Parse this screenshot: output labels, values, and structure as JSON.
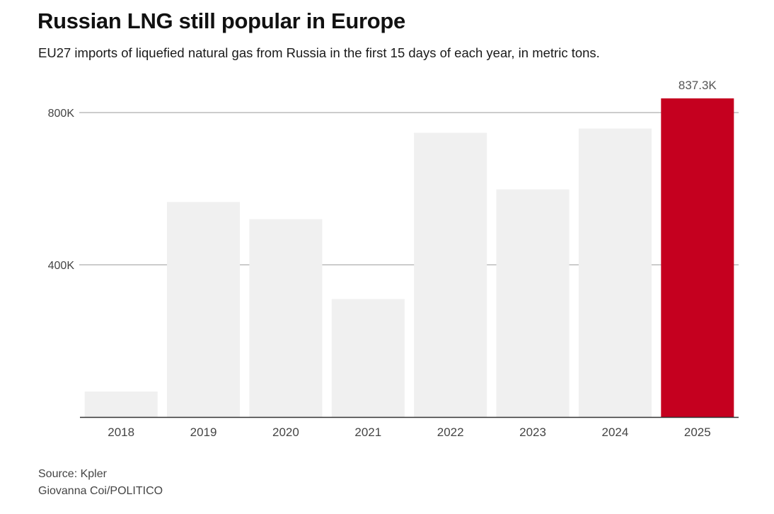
{
  "header": {
    "title": "Russian LNG still popular in Europe",
    "subtitle": "EU27 imports of liquefied natural gas from Russia in the first 15 days of each year, in metric tons."
  },
  "chart_data": {
    "type": "bar",
    "categories": [
      "2018",
      "2019",
      "2020",
      "2021",
      "2022",
      "2023",
      "2024",
      "2025"
    ],
    "values": [
      67000,
      565000,
      520000,
      310000,
      747000,
      598000,
      758000,
      837300
    ],
    "highlight_index": 7,
    "data_labels": [
      "",
      "",
      "",
      "",
      "",
      "",
      "",
      "837.3K"
    ],
    "yticks": [
      {
        "value": 400000,
        "label": "400K"
      },
      {
        "value": 800000,
        "label": "800K"
      }
    ],
    "ylim": [
      0,
      837300
    ],
    "grid": true,
    "colors": {
      "bar": "#f0f0f0",
      "highlight": "#c5001f",
      "grid": "#999999",
      "axis": "#333333",
      "tick_text": "#444444",
      "label_text": "#555555"
    }
  },
  "footer": {
    "source": "Source: Kpler",
    "credit": "Giovanna Coi/POLITICO"
  }
}
